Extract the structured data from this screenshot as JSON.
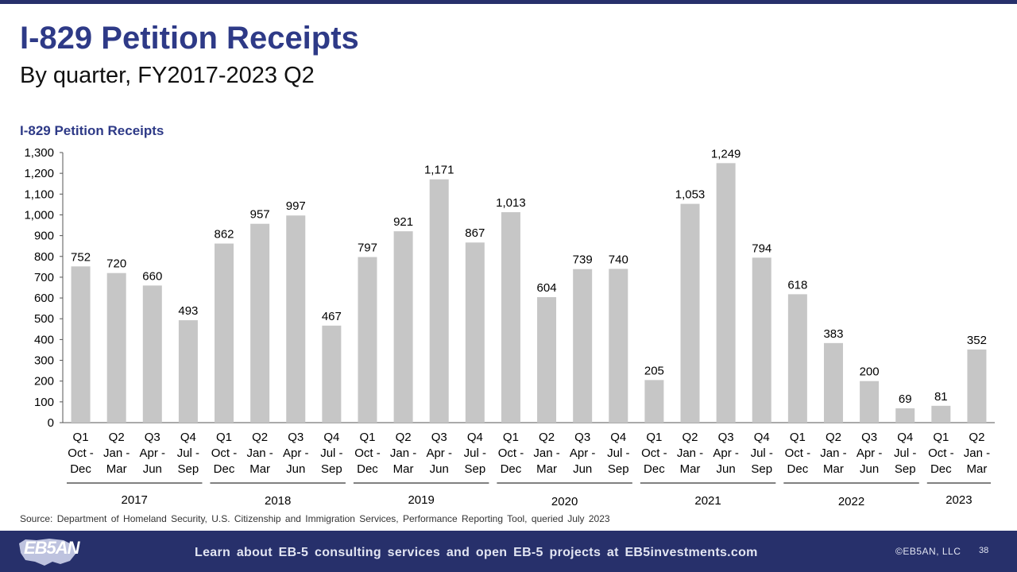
{
  "slide": {
    "title": "I-829 Petition Receipts",
    "subtitle": "By quarter, FY2017-2023 Q2",
    "source": "Source: Department of Homeland Security, U.S. Citizenship and Immigration Services, Performance Reporting Tool, queried July 2023"
  },
  "footer": {
    "logo_text": "EB5AN",
    "cta": "Learn about EB-5 consulting services and open EB-5 projects at EB5investments.com",
    "copyright": "©EB5AN, LLC",
    "page_number": "38"
  },
  "colors": {
    "bar": "#c6c6c6",
    "brand_navy": "#27306b",
    "title_blue": "#2e3a87"
  },
  "chart_data": {
    "type": "bar",
    "title": "I-829 Petition Receipts",
    "xlabel": "",
    "ylabel": "",
    "ylim": [
      0,
      1300
    ],
    "yticks": [
      0,
      100,
      200,
      300,
      400,
      500,
      600,
      700,
      800,
      900,
      1000,
      1100,
      1200,
      1300
    ],
    "ytick_labels": [
      "0",
      "100",
      "200",
      "300",
      "400",
      "500",
      "600",
      "700",
      "800",
      "900",
      "1,000",
      "1,100",
      "1,200",
      "1,300"
    ],
    "grid": false,
    "categories": [
      [
        "Q1",
        "Oct -",
        "Dec"
      ],
      [
        "Q2",
        "Jan -",
        "Mar"
      ],
      [
        "Q3",
        "Apr -",
        "Jun"
      ],
      [
        "Q4",
        "Jul -",
        "Sep"
      ],
      [
        "Q1",
        "Oct -",
        "Dec"
      ],
      [
        "Q2",
        "Jan -",
        "Mar"
      ],
      [
        "Q3",
        "Apr -",
        "Jun"
      ],
      [
        "Q4",
        "Jul -",
        "Sep"
      ],
      [
        "Q1",
        "Oct -",
        "Dec"
      ],
      [
        "Q2",
        "Jan -",
        "Mar"
      ],
      [
        "Q3",
        "Apr -",
        "Jun"
      ],
      [
        "Q4",
        "Jul -",
        "Sep"
      ],
      [
        "Q1",
        "Oct -",
        "Dec"
      ],
      [
        "Q2",
        "Jan -",
        "Mar"
      ],
      [
        "Q3",
        "Apr -",
        "Jun"
      ],
      [
        "Q4",
        "Jul -",
        "Sep"
      ],
      [
        "Q1",
        "Oct -",
        "Dec"
      ],
      [
        "Q2",
        "Jan -",
        "Mar"
      ],
      [
        "Q3",
        "Apr -",
        "Jun"
      ],
      [
        "Q4",
        "Jul -",
        "Sep"
      ],
      [
        "Q1",
        "Oct -",
        "Dec"
      ],
      [
        "Q2",
        "Jan -",
        "Mar"
      ],
      [
        "Q3",
        "Apr -",
        "Jun"
      ],
      [
        "Q4",
        "Jul -",
        "Sep"
      ],
      [
        "Q1",
        "Oct -",
        "Dec"
      ],
      [
        "Q2",
        "Jan -",
        "Mar"
      ]
    ],
    "values": [
      752,
      720,
      660,
      493,
      862,
      957,
      997,
      467,
      797,
      921,
      1171,
      867,
      1013,
      604,
      739,
      740,
      205,
      1053,
      1249,
      794,
      618,
      383,
      200,
      69,
      81,
      352
    ],
    "value_labels": [
      "752",
      "720",
      "660",
      "493",
      "862",
      "957",
      "997",
      "467",
      "797",
      "921",
      "1,171",
      "867",
      "1,013",
      "604",
      "739",
      "740",
      "205",
      "1,053",
      "1,249",
      "794",
      "618",
      "383",
      "200",
      "69",
      "81",
      "352"
    ],
    "groups": [
      {
        "label": "2017",
        "start": 0,
        "end": 3
      },
      {
        "label": "2018",
        "start": 4,
        "end": 7
      },
      {
        "label": "2019",
        "start": 8,
        "end": 11
      },
      {
        "label": "2020",
        "start": 12,
        "end": 15
      },
      {
        "label": "2021",
        "start": 16,
        "end": 19
      },
      {
        "label": "2022",
        "start": 20,
        "end": 23
      },
      {
        "label": "2023",
        "start": 24,
        "end": 25
      }
    ]
  }
}
